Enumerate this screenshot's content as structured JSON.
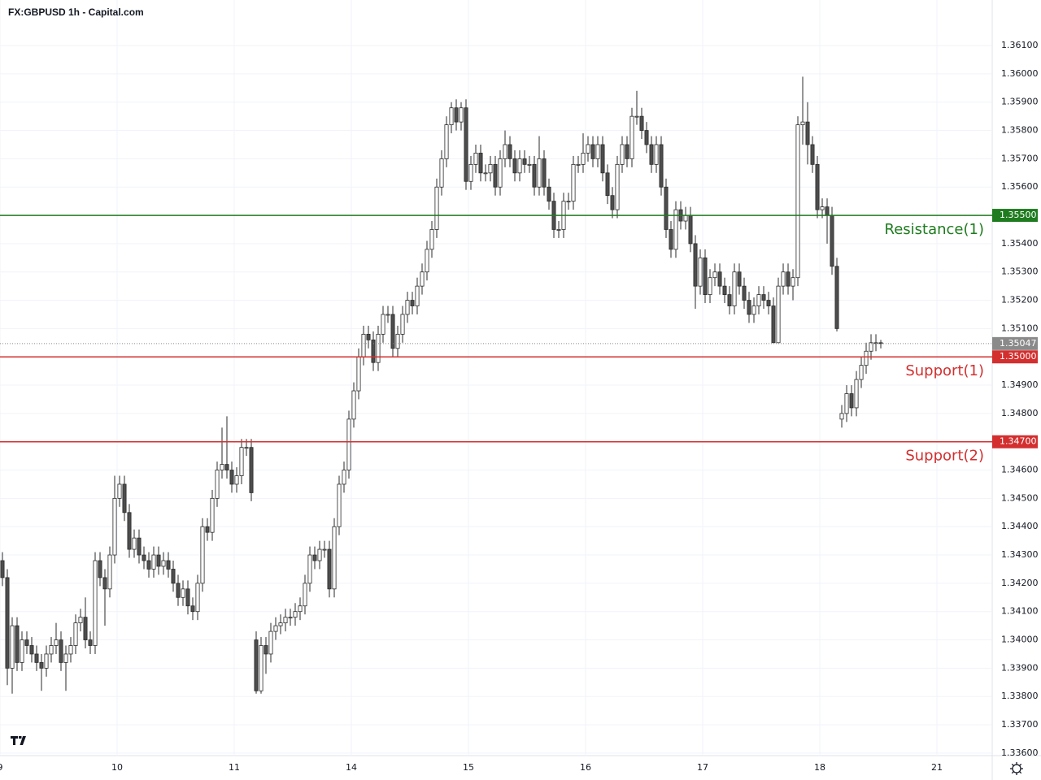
{
  "chart_data": {
    "type": "candlestick",
    "title": "FX:GBPUSD 1h - Capital.com",
    "grid": true,
    "up_color": "#ffffff",
    "down_color": "#4d4d4d",
    "border_color": "#2a2a2a",
    "xlim": [
      -0.5,
      202.83
    ],
    "xticks": [
      {
        "value": -0.5,
        "label": "9"
      },
      {
        "value": 23.5,
        "label": "10"
      },
      {
        "value": 47.5,
        "label": "11"
      },
      {
        "value": 71.5,
        "label": "14"
      },
      {
        "value": 95.5,
        "label": "15"
      },
      {
        "value": 119.5,
        "label": "16"
      },
      {
        "value": 143.5,
        "label": "17"
      },
      {
        "value": 167.5,
        "label": "18"
      },
      {
        "value": 191.5,
        "label": "21"
      }
    ],
    "ylim": [
      1.33591,
      1.36261
    ],
    "yticks": [
      {
        "value": 1.361,
        "label": "1.36100"
      },
      {
        "value": 1.36,
        "label": "1.36000"
      },
      {
        "value": 1.359,
        "label": "1.35900"
      },
      {
        "value": 1.358,
        "label": "1.35800"
      },
      {
        "value": 1.357,
        "label": "1.35700"
      },
      {
        "value": 1.356,
        "label": "1.35600"
      },
      {
        "value": 1.354,
        "label": "1.35400"
      },
      {
        "value": 1.353,
        "label": "1.35300"
      },
      {
        "value": 1.352,
        "label": "1.35200"
      },
      {
        "value": 1.351,
        "label": "1.35100"
      },
      {
        "value": 1.349,
        "label": "1.34900"
      },
      {
        "value": 1.348,
        "label": "1.34800"
      },
      {
        "value": 1.346,
        "label": "1.34600"
      },
      {
        "value": 1.345,
        "label": "1.34500"
      },
      {
        "value": 1.344,
        "label": "1.34400"
      },
      {
        "value": 1.343,
        "label": "1.34300"
      },
      {
        "value": 1.342,
        "label": "1.34200"
      },
      {
        "value": 1.341,
        "label": "1.34100"
      },
      {
        "value": 1.34,
        "label": "1.34000"
      },
      {
        "value": 1.339,
        "label": "1.33900"
      },
      {
        "value": 1.338,
        "label": "1.33800"
      },
      {
        "value": 1.337,
        "label": "1.33700"
      },
      {
        "value": 1.336,
        "label": "1.33600"
      }
    ],
    "levels": [
      {
        "name": "Resistance(1)",
        "value": 1.355,
        "label": "1.35500",
        "color": "#1e7b1e"
      },
      {
        "name": "Support(1)",
        "value": 1.35,
        "label": "1.35000",
        "color": "#d32f2f"
      },
      {
        "name": "Support(2)",
        "value": 1.347,
        "label": "1.34700",
        "color": "#d32f2f"
      }
    ],
    "last_price": {
      "value": 1.35047,
      "label": "1.35047",
      "color": "#8a8a8a"
    },
    "open": [
      1.3428,
      1.3422,
      1.339,
      1.3405,
      1.3392,
      1.34,
      1.3398,
      1.3395,
      1.3392,
      1.339,
      1.3395,
      1.3398,
      1.34,
      1.3392,
      1.3395,
      1.3398,
      1.3406,
      1.3408,
      1.34,
      1.3398,
      1.3428,
      1.3422,
      1.3418,
      1.343,
      1.345,
      1.3455,
      1.3445,
      1.3432,
      1.3436,
      1.343,
      1.3428,
      1.3425,
      1.343,
      1.3426,
      1.3428,
      1.3425,
      1.342,
      1.3415,
      1.3418,
      1.3412,
      1.341,
      1.342,
      1.344,
      1.3438,
      1.345,
      1.346,
      1.3462,
      1.346,
      1.3455,
      1.3458,
      1.3468,
      1.3468,
      1.34,
      1.3382,
      1.3398,
      1.3395,
      1.3403,
      1.3405,
      1.3406,
      1.3408,
      1.3408,
      1.341,
      1.3412,
      1.342,
      1.343,
      1.3428,
      1.3432,
      1.3432,
      1.3418,
      1.344,
      1.3455,
      1.346,
      1.3478,
      1.3488,
      1.35,
      1.3508,
      1.3506,
      1.3498,
      1.3508,
      1.3515,
      1.3515,
      1.3503,
      1.3508,
      1.3515,
      1.352,
      1.3518,
      1.3525,
      1.353,
      1.3538,
      1.3545,
      1.356,
      1.357,
      1.3582,
      1.3588,
      1.3583,
      1.3588,
      1.3562,
      1.3568,
      1.3572,
      1.3565,
      1.3565,
      1.3568,
      1.356,
      1.357,
      1.3575,
      1.357,
      1.3565,
      1.357,
      1.3568,
      1.3568,
      1.356,
      1.357,
      1.356,
      1.3555,
      1.3545,
      1.3545,
      1.3555,
      1.3555,
      1.3568,
      1.3568,
      1.3572,
      1.3575,
      1.357,
      1.3575,
      1.3565,
      1.3557,
      1.3552,
      1.3568,
      1.3575,
      1.357,
      1.3585,
      1.3585,
      1.358,
      1.3575,
      1.3568,
      1.3575,
      1.356,
      1.3545,
      1.3538,
      1.3552,
      1.3548,
      1.355,
      1.354,
      1.3525,
      1.3535,
      1.3522,
      1.3528,
      1.353,
      1.3525,
      1.3522,
      1.3518,
      1.353,
      1.3525,
      1.352,
      1.3515,
      1.3518,
      1.3522,
      1.352,
      1.3518,
      1.3505,
      1.3525,
      1.353,
      1.3525,
      1.3528,
      1.3582,
      1.3583,
      1.3575,
      1.3568,
      1.3552,
      1.3553,
      1.355,
      1.3532,
      1.3478,
      1.348,
      1.3487,
      1.3482,
      1.3492,
      1.3497,
      1.3502,
      1.3505,
      1.3505
    ],
    "high": [
      1.3431,
      1.3425,
      1.3408,
      1.3408,
      1.3403,
      1.3403,
      1.3401,
      1.3398,
      1.3395,
      1.3398,
      1.3401,
      1.3406,
      1.3403,
      1.3398,
      1.3401,
      1.3409,
      1.3411,
      1.3415,
      1.3403,
      1.3431,
      1.3431,
      1.3425,
      1.3433,
      1.3458,
      1.3458,
      1.3458,
      1.3448,
      1.3439,
      1.3439,
      1.3433,
      1.3431,
      1.3433,
      1.3433,
      1.3431,
      1.3431,
      1.3428,
      1.3423,
      1.3421,
      1.3421,
      1.3415,
      1.3423,
      1.3443,
      1.3443,
      1.3453,
      1.3463,
      1.3475,
      1.3479,
      1.3463,
      1.3461,
      1.3471,
      1.3471,
      1.3471,
      1.3403,
      1.3401,
      1.3401,
      1.3406,
      1.3408,
      1.3409,
      1.3411,
      1.3411,
      1.3413,
      1.3415,
      1.3423,
      1.3433,
      1.3433,
      1.3435,
      1.3435,
      1.3435,
      1.3443,
      1.3458,
      1.3463,
      1.3481,
      1.3491,
      1.3503,
      1.3511,
      1.3511,
      1.3509,
      1.3511,
      1.3518,
      1.3518,
      1.3518,
      1.3511,
      1.3518,
      1.3523,
      1.3523,
      1.3528,
      1.3533,
      1.3541,
      1.3548,
      1.3563,
      1.3573,
      1.3585,
      1.359,
      1.3591,
      1.359,
      1.3591,
      1.3571,
      1.3575,
      1.3575,
      1.3568,
      1.3571,
      1.3571,
      1.3573,
      1.358,
      1.3578,
      1.3573,
      1.3573,
      1.3573,
      1.3571,
      1.3571,
      1.3578,
      1.3573,
      1.3563,
      1.3558,
      1.3548,
      1.3558,
      1.3558,
      1.3571,
      1.3571,
      1.3579,
      1.3578,
      1.3578,
      1.3578,
      1.3578,
      1.3568,
      1.356,
      1.3571,
      1.3578,
      1.3578,
      1.3588,
      1.3594,
      1.3588,
      1.3583,
      1.3578,
      1.3578,
      1.3578,
      1.3563,
      1.3548,
      1.3555,
      1.3555,
      1.3553,
      1.3553,
      1.3543,
      1.3538,
      1.3538,
      1.3531,
      1.3533,
      1.3533,
      1.3528,
      1.3525,
      1.3533,
      1.3533,
      1.3528,
      1.3523,
      1.3521,
      1.3525,
      1.3525,
      1.3523,
      1.3521,
      1.3528,
      1.3533,
      1.3533,
      1.3531,
      1.3585,
      1.3599,
      1.359,
      1.3578,
      1.3571,
      1.3556,
      1.3556,
      1.3553,
      1.3535,
      1.3483,
      1.349,
      1.349,
      1.3495,
      1.35,
      1.3505,
      1.3508,
      1.3508,
      1.3506
    ],
    "low": [
      1.3419,
      1.3384,
      1.3381,
      1.3389,
      1.3389,
      1.3395,
      1.3392,
      1.3389,
      1.3382,
      1.3387,
      1.3392,
      1.3395,
      1.3389,
      1.3382,
      1.3392,
      1.3395,
      1.3403,
      1.3397,
      1.3395,
      1.3395,
      1.3419,
      1.3405,
      1.3415,
      1.3427,
      1.3447,
      1.3442,
      1.3429,
      1.3429,
      1.3427,
      1.3425,
      1.3422,
      1.3422,
      1.3423,
      1.3423,
      1.3422,
      1.3417,
      1.3412,
      1.3412,
      1.3409,
      1.3407,
      1.3407,
      1.3417,
      1.3435,
      1.3435,
      1.3447,
      1.3457,
      1.3457,
      1.3452,
      1.3452,
      1.3455,
      1.3465,
      1.3449,
      1.3381,
      1.3381,
      1.3388,
      1.3392,
      1.34,
      1.3402,
      1.3403,
      1.3405,
      1.3405,
      1.3407,
      1.3409,
      1.3417,
      1.3425,
      1.3425,
      1.3429,
      1.3415,
      1.3415,
      1.3437,
      1.3452,
      1.3457,
      1.3475,
      1.3485,
      1.3497,
      1.3503,
      1.3495,
      1.3495,
      1.3505,
      1.3512,
      1.35,
      1.35,
      1.3505,
      1.3512,
      1.3515,
      1.3515,
      1.3522,
      1.3527,
      1.3535,
      1.3542,
      1.3557,
      1.3567,
      1.3579,
      1.358,
      1.358,
      1.3559,
      1.3559,
      1.3565,
      1.3562,
      1.3562,
      1.3562,
      1.3557,
      1.3557,
      1.3567,
      1.3567,
      1.3562,
      1.3562,
      1.3565,
      1.3565,
      1.3557,
      1.3557,
      1.3557,
      1.3552,
      1.3542,
      1.3542,
      1.3542,
      1.3552,
      1.3552,
      1.3565,
      1.3565,
      1.3569,
      1.3567,
      1.3567,
      1.3562,
      1.3554,
      1.3549,
      1.3549,
      1.3565,
      1.3567,
      1.3567,
      1.3582,
      1.3577,
      1.3572,
      1.3565,
      1.3565,
      1.3557,
      1.3542,
      1.3535,
      1.3535,
      1.3545,
      1.3545,
      1.3537,
      1.3517,
      1.3522,
      1.3519,
      1.3519,
      1.3525,
      1.3522,
      1.3519,
      1.3515,
      1.3515,
      1.3522,
      1.3517,
      1.3512,
      1.3512,
      1.3515,
      1.3517,
      1.3515,
      1.3505,
      1.3505,
      1.3522,
      1.3522,
      1.352,
      1.3525,
      1.3575,
      1.3568,
      1.3565,
      1.3549,
      1.3549,
      1.354,
      1.3529,
      1.3509,
      1.3475,
      1.3477,
      1.3479,
      1.3479,
      1.3489,
      1.3494,
      1.3499,
      1.3502,
      1.3503
    ],
    "close": [
      1.3422,
      1.339,
      1.3405,
      1.3392,
      1.34,
      1.3398,
      1.3395,
      1.3392,
      1.339,
      1.3395,
      1.3398,
      1.34,
      1.3392,
      1.3395,
      1.3398,
      1.3406,
      1.3408,
      1.34,
      1.3398,
      1.3428,
      1.3422,
      1.3418,
      1.343,
      1.345,
      1.3455,
      1.3445,
      1.3432,
      1.3436,
      1.343,
      1.3428,
      1.3425,
      1.343,
      1.3426,
      1.3428,
      1.3425,
      1.342,
      1.3415,
      1.3418,
      1.3412,
      1.341,
      1.342,
      1.344,
      1.3438,
      1.345,
      1.346,
      1.3462,
      1.346,
      1.3455,
      1.3458,
      1.3468,
      1.3468,
      1.3452,
      1.3382,
      1.3398,
      1.3395,
      1.3403,
      1.3405,
      1.3406,
      1.3408,
      1.3408,
      1.341,
      1.3412,
      1.342,
      1.343,
      1.3428,
      1.3432,
      1.3432,
      1.3418,
      1.344,
      1.3455,
      1.346,
      1.3478,
      1.3488,
      1.35,
      1.3508,
      1.3506,
      1.3498,
      1.3508,
      1.3515,
      1.3515,
      1.3503,
      1.3508,
      1.3515,
      1.352,
      1.3518,
      1.3525,
      1.353,
      1.3538,
      1.3545,
      1.356,
      1.357,
      1.3582,
      1.3588,
      1.3583,
      1.3588,
      1.3562,
      1.3568,
      1.3572,
      1.3565,
      1.3565,
      1.3568,
      1.356,
      1.357,
      1.3575,
      1.357,
      1.3565,
      1.357,
      1.3568,
      1.3568,
      1.356,
      1.357,
      1.356,
      1.3555,
      1.3545,
      1.3545,
      1.3555,
      1.3555,
      1.3568,
      1.3568,
      1.3572,
      1.3575,
      1.357,
      1.3575,
      1.3565,
      1.3557,
      1.3552,
      1.3568,
      1.3575,
      1.357,
      1.3585,
      1.3585,
      1.358,
      1.3575,
      1.3568,
      1.3575,
      1.356,
      1.3545,
      1.3538,
      1.3552,
      1.3548,
      1.355,
      1.354,
      1.3525,
      1.3535,
      1.3522,
      1.3528,
      1.353,
      1.3525,
      1.3522,
      1.3518,
      1.353,
      1.3525,
      1.352,
      1.3515,
      1.3518,
      1.3522,
      1.352,
      1.3518,
      1.3505,
      1.3525,
      1.353,
      1.3525,
      1.3528,
      1.3582,
      1.3583,
      1.3575,
      1.3568,
      1.3552,
      1.3553,
      1.355,
      1.3532,
      1.351,
      1.348,
      1.3487,
      1.3482,
      1.3492,
      1.3497,
      1.3502,
      1.3505,
      1.3505,
      1.35047
    ]
  }
}
